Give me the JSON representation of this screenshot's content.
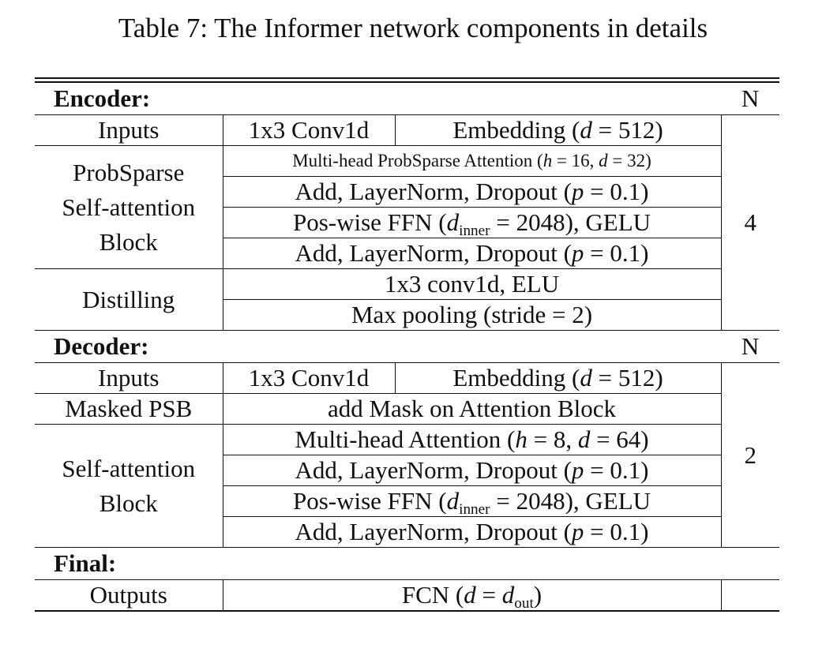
{
  "caption": "Table 7: The Informer  network components in details",
  "encoder": {
    "header": "Encoder:",
    "n_label": "N",
    "inputs": {
      "label": "Inputs",
      "conv": "1x3 Conv1d",
      "embed_pre": "Embedding (",
      "embed_var": "d",
      "embed_post": " = 512)"
    },
    "block_label": [
      "ProbSparse",
      "Self-attention",
      "Block"
    ],
    "attn": {
      "pre": "Multi-head ProbSparse Attention (",
      "h_var": "h",
      "mid": " = 16, ",
      "d_var": "d",
      "post": " = 32)"
    },
    "addnorm1": {
      "pre": "Add, LayerNorm, Dropout (",
      "var": "p",
      "post": " = 0.1)"
    },
    "ffn": {
      "pre": "Pos-wise FFN (",
      "var": "d",
      "sub": "inner",
      "post": " = 2048), GELU"
    },
    "addnorm2": {
      "pre": "Add, LayerNorm, Dropout (",
      "var": "p",
      "post": " = 0.1)"
    },
    "distilling": {
      "label": "Distilling",
      "conv": "1x3 conv1d, ELU",
      "pool": "Max pooling (stride = 2)"
    },
    "n_value": "4"
  },
  "decoder": {
    "header": "Decoder:",
    "n_label": "N",
    "inputs": {
      "label": "Inputs",
      "conv": "1x3 Conv1d",
      "embed_pre": "Embedding (",
      "embed_var": "d",
      "embed_post": " = 512)"
    },
    "masked": {
      "label": "Masked PSB",
      "value": "add Mask on Attention Block"
    },
    "block_label": [
      "Self-attention",
      "Block"
    ],
    "attn": {
      "pre": "Multi-head Attention (",
      "h_var": "h",
      "mid": " = 8, ",
      "d_var": "d",
      "post": " = 64)"
    },
    "addnorm1": {
      "pre": "Add, LayerNorm, Dropout (",
      "var": "p",
      "post": " = 0.1)"
    },
    "ffn": {
      "pre": "Pos-wise FFN (",
      "var": "d",
      "sub": "inner",
      "post": " = 2048), GELU"
    },
    "addnorm2": {
      "pre": "Add, LayerNorm, Dropout (",
      "var": "p",
      "post": " = 0.1)"
    },
    "n_value": "2"
  },
  "final": {
    "header": "Final:",
    "outputs_label": "Outputs",
    "fcn": {
      "pre": "FCN (",
      "var": "d",
      "mid": " = ",
      "var2": "d",
      "sub": "out",
      "post": ")"
    }
  }
}
